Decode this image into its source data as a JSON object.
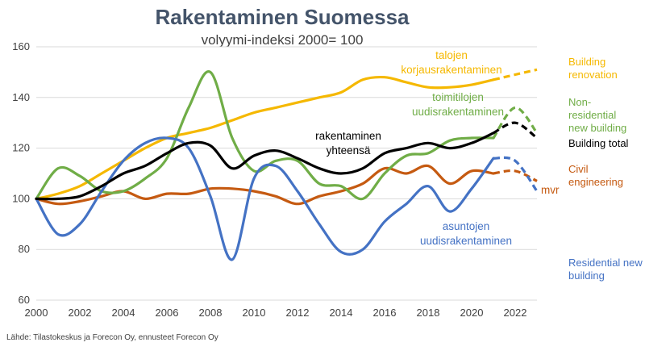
{
  "chart_data": {
    "type": "line",
    "title": "Rakentaminen Suomessa",
    "subtitle": "volyymi-indeksi 2000= 100",
    "source": "Lähde: Tilastokeskus ja Forecon Oy, ennusteet Forecon Oy",
    "xlim": [
      2000,
      2023
    ],
    "ylim": [
      60,
      160
    ],
    "x_ticks": [
      2000,
      2002,
      2004,
      2006,
      2008,
      2010,
      2012,
      2014,
      2016,
      2018,
      2020,
      2022
    ],
    "y_ticks": [
      60,
      80,
      100,
      120,
      140,
      160
    ],
    "grid": "horizontal",
    "forecast_from": 2021,
    "series": [
      {
        "key": "renovation",
        "color": "#f5b800",
        "labels": [
          "talojen",
          "korjausrakentaminen"
        ],
        "right_label": [
          "Building",
          "renovation"
        ],
        "x": [
          2000,
          2001,
          2002,
          2003,
          2004,
          2005,
          2006,
          2007,
          2008,
          2009,
          2010,
          2011,
          2012,
          2013,
          2014,
          2015,
          2016,
          2017,
          2018,
          2019,
          2020,
          2021,
          2022,
          2023
        ],
        "values": [
          100,
          102,
          105,
          110,
          115,
          120,
          124,
          126,
          128,
          131,
          134,
          136,
          138,
          140,
          142,
          147,
          148,
          146,
          144,
          144,
          145,
          147,
          149,
          151
        ]
      },
      {
        "key": "nonres",
        "color": "#70ad47",
        "labels": [
          "toimitilojen",
          "uudisrakentaminen"
        ],
        "right_label": [
          "Non-",
          "residential",
          "new building"
        ],
        "x": [
          2000,
          2001,
          2002,
          2003,
          2004,
          2005,
          2006,
          2007,
          2008,
          2009,
          2010,
          2011,
          2012,
          2013,
          2014,
          2015,
          2016,
          2017,
          2018,
          2019,
          2020,
          2021,
          2022,
          2023
        ],
        "values": [
          100,
          112,
          109,
          103,
          103,
          108,
          116,
          136,
          150,
          124,
          111,
          115,
          115,
          106,
          105,
          100,
          110,
          117,
          118,
          123,
          124,
          124,
          136,
          126
        ]
      },
      {
        "key": "total",
        "color": "#000000",
        "labels": [
          "rakentaminen",
          "yhteensä"
        ],
        "right_label": [
          "Building total"
        ],
        "x": [
          2000,
          2001,
          2002,
          2003,
          2004,
          2005,
          2006,
          2007,
          2008,
          2009,
          2010,
          2011,
          2012,
          2013,
          2014,
          2015,
          2016,
          2017,
          2018,
          2019,
          2020,
          2021,
          2022,
          2023
        ],
        "values": [
          100,
          100,
          101,
          105,
          110,
          113,
          118,
          122,
          121,
          112,
          117,
          119,
          116,
          112,
          110,
          112,
          118,
          120,
          122,
          120,
          122,
          126,
          130,
          124
        ]
      },
      {
        "key": "civil",
        "color": "#c55a11",
        "labels": [
          "mvr"
        ],
        "right_label": [
          "Civil",
          "engineering"
        ],
        "x": [
          2000,
          2001,
          2002,
          2003,
          2004,
          2005,
          2006,
          2007,
          2008,
          2009,
          2010,
          2011,
          2012,
          2013,
          2014,
          2015,
          2016,
          2017,
          2018,
          2019,
          2020,
          2021,
          2022,
          2023
        ],
        "values": [
          100,
          98,
          99,
          101,
          103,
          100,
          102,
          102,
          104,
          104,
          103,
          101,
          98,
          101,
          103,
          106,
          112,
          110,
          113,
          106,
          111,
          110,
          111,
          107
        ]
      },
      {
        "key": "residential",
        "color": "#4472c4",
        "labels": [
          "asuntojen",
          "uudisrakentaminen"
        ],
        "right_label": [
          "Residential new",
          "building"
        ],
        "x": [
          2000,
          2001,
          2002,
          2003,
          2004,
          2005,
          2006,
          2007,
          2008,
          2009,
          2010,
          2011,
          2012,
          2013,
          2014,
          2015,
          2016,
          2017,
          2018,
          2019,
          2020,
          2021,
          2022,
          2023
        ],
        "values": [
          100,
          86,
          90,
          103,
          115,
          122,
          124,
          120,
          101,
          76,
          108,
          113,
          103,
          90,
          79,
          80,
          91,
          98,
          105,
          95,
          104,
          116,
          115,
          103
        ]
      }
    ]
  }
}
